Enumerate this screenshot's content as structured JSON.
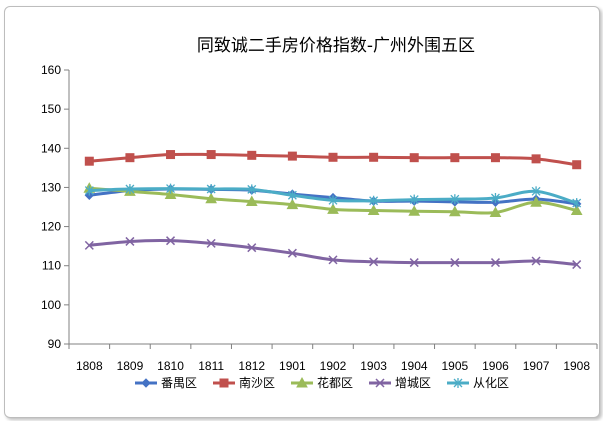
{
  "chart_data": {
    "type": "line",
    "title": "同致诚二手房价格指数-广州外围五区",
    "categories": [
      "1808",
      "1809",
      "1810",
      "1811",
      "1812",
      "1901",
      "1902",
      "1903",
      "1904",
      "1905",
      "1906",
      "1907",
      "1908"
    ],
    "ylim": [
      90,
      160
    ],
    "yticks": [
      90,
      100,
      110,
      120,
      130,
      140,
      150,
      160
    ],
    "grid": false,
    "legend_position": "bottom",
    "series": [
      {
        "name": "番禺区",
        "color": "#4472c4",
        "marker": "diamond",
        "values": [
          128,
          129.2,
          129.6,
          129.5,
          129.3,
          128.3,
          127.4,
          126.5,
          126.5,
          126.3,
          126.2,
          127,
          125.8
        ]
      },
      {
        "name": "南沙区",
        "color": "#c0504d",
        "marker": "square",
        "values": [
          136.7,
          137.6,
          138.4,
          138.4,
          138.2,
          138.0,
          137.7,
          137.7,
          137.6,
          137.6,
          137.6,
          137.3,
          135.8
        ]
      },
      {
        "name": "花都区",
        "color": "#9bbb59",
        "marker": "triangle",
        "values": [
          129.8,
          129.0,
          128.2,
          127.1,
          126.4,
          125.6,
          124.4,
          124.1,
          123.9,
          123.8,
          123.6,
          126.2,
          124.1
        ]
      },
      {
        "name": "增城区",
        "color": "#8064a2",
        "marker": "x",
        "values": [
          115.2,
          116.2,
          116.4,
          115.7,
          114.6,
          113.2,
          111.5,
          111.0,
          110.8,
          110.8,
          110.8,
          111.2,
          110.3
        ]
      },
      {
        "name": "从化区",
        "color": "#4bacc6",
        "marker": "star",
        "values": [
          129.2,
          129.6,
          129.7,
          129.6,
          129.5,
          128.0,
          126.7,
          126.6,
          126.9,
          127.0,
          127.3,
          129.0,
          126.0
        ]
      }
    ]
  }
}
